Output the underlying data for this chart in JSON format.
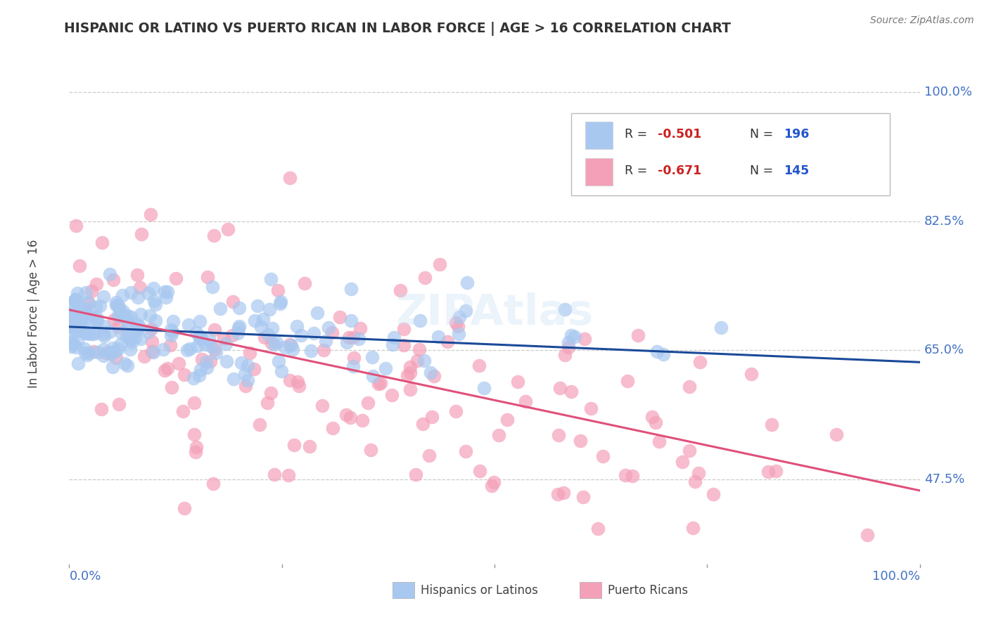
{
  "title": "HISPANIC OR LATINO VS PUERTO RICAN IN LABOR FORCE | AGE > 16 CORRELATION CHART",
  "source": "Source: ZipAtlas.com",
  "ylabel": "In Labor Force | Age > 16",
  "xlim": [
    0.0,
    1.0
  ],
  "ylim": [
    0.36,
    1.04
  ],
  "yticks": [
    0.475,
    0.65,
    0.825,
    1.0
  ],
  "ytick_labels": [
    "47.5%",
    "65.0%",
    "82.5%",
    "100.0%"
  ],
  "xtick_labels": [
    "0.0%",
    "100.0%"
  ],
  "grid_color": "#cccccc",
  "background_color": "#ffffff",
  "blue_color": "#a8c8f0",
  "blue_line_color": "#1a4a99",
  "pink_color": "#f4a0b8",
  "pink_line_color": "#e0507a",
  "legend_r1": "-0.501",
  "legend_n1": "196",
  "legend_r2": "-0.671",
  "legend_n2": "145",
  "r_color": "#cc2222",
  "n_color": "#2255cc",
  "label1": "Hispanics or Latinos",
  "label2": "Puerto Ricans",
  "title_color": "#333333",
  "axis_label_color": "#444444",
  "tick_color": "#4472c4",
  "watermark": "ZIPAtlas",
  "seed": 99,
  "n_blue": 196,
  "n_pink": 145,
  "blue_intercept": 0.682,
  "blue_slope": -0.048,
  "blue_noise": 0.032,
  "pink_intercept": 0.705,
  "pink_slope": -0.245,
  "pink_noise": 0.072
}
